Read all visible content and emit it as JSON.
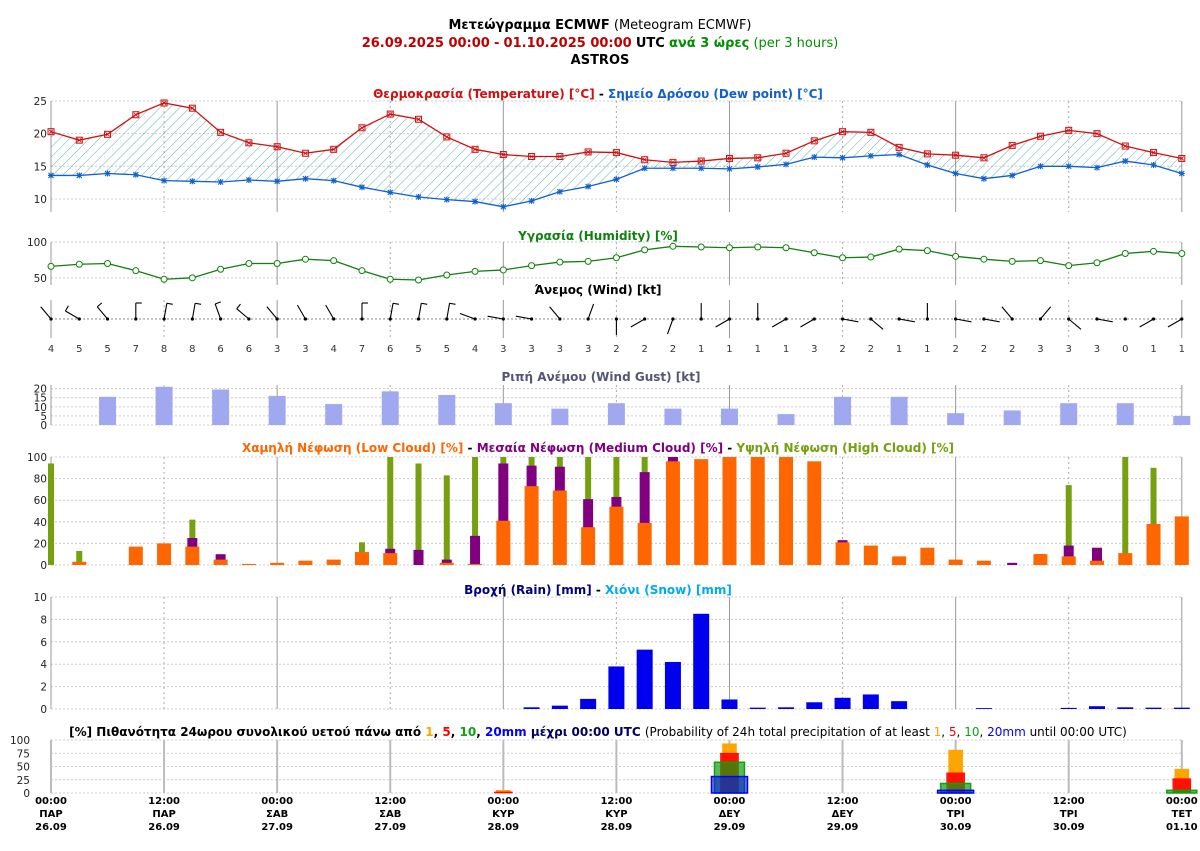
{
  "header": {
    "title_gr": "Μετεώγραμμα ECMWF",
    "title_en": "(Meteogram ECMWF)",
    "date_start": "26.09.2025 00:00",
    "dash": "-",
    "date_end": "01.10.2025 00:00",
    "utc": "UTC",
    "step_gr": "ανά 3 ώρες",
    "step_en": "(per 3 hours)",
    "location": "ASTROS"
  },
  "colors": {
    "temperature": "#d01010",
    "dewpoint": "#1060d0",
    "humidity": "#108010",
    "wind": "#000000",
    "gust": "#a0a8f0",
    "low_cloud": "#ff6600",
    "medium_cloud": "#800080",
    "high_cloud": "#77a010",
    "rain": "#0000ee",
    "snow": "#00aaee",
    "p1": "#ffa500",
    "p5": "#ff0000",
    "p10": "#10a010",
    "p20": "#0000ff"
  },
  "chart_data": [
    {
      "type": "line",
      "title_left": "Θερμοκρασία (Temperature) [°C]",
      "title_sep": "-",
      "title_right": "Σημείο Δρόσου (Dew point) [°C]",
      "ylim": [
        8,
        25
      ],
      "yticks": [
        10,
        15,
        20,
        25
      ],
      "series": [
        {
          "name": "Temperature",
          "values": [
            20.3,
            19.0,
            19.9,
            22.9,
            24.7,
            23.9,
            20.2,
            18.6,
            18.0,
            17.0,
            17.6,
            20.9,
            23.0,
            22.2,
            19.5,
            17.6,
            16.8,
            16.5,
            16.5,
            17.2,
            17.1,
            16.0,
            15.6,
            15.8,
            16.2,
            16.3,
            17.0,
            18.9,
            20.3,
            20.2,
            17.9,
            16.9,
            16.7,
            16.3,
            18.2,
            19.6,
            20.5,
            20.0,
            18.1,
            17.1,
            16.2
          ]
        },
        {
          "name": "Dew point",
          "values": [
            13.6,
            13.6,
            13.9,
            13.7,
            12.8,
            12.7,
            12.6,
            12.9,
            12.7,
            13.1,
            12.8,
            11.8,
            11.0,
            10.3,
            9.9,
            9.6,
            8.8,
            9.7,
            11.1,
            11.9,
            13.0,
            14.7,
            14.7,
            14.7,
            14.6,
            14.9,
            15.3,
            16.4,
            16.3,
            16.6,
            16.8,
            15.2,
            13.9,
            13.1,
            13.6,
            15.0,
            15.0,
            14.8,
            15.8,
            15.2,
            13.9
          ]
        }
      ]
    },
    {
      "type": "line",
      "title": "Υγρασία (Humidity) [%]",
      "ylim": [
        40,
        100
      ],
      "yticks": [
        50,
        100
      ],
      "series": [
        {
          "name": "Humidity",
          "values": [
            66,
            69,
            70,
            60,
            48,
            50,
            62,
            70,
            70,
            76,
            74,
            60,
            48,
            47,
            54,
            59,
            61,
            67,
            72,
            73,
            78,
            89,
            94,
            93,
            92,
            93,
            92,
            85,
            78,
            79,
            90,
            88,
            80,
            76,
            73,
            74,
            67,
            71,
            84,
            87,
            84
          ]
        }
      ]
    },
    {
      "type": "scatter",
      "title": "Άνεμος (Wind) [kt]",
      "speeds": [
        4,
        5,
        5,
        7,
        8,
        8,
        6,
        6,
        3,
        3,
        4,
        7,
        6,
        5,
        5,
        4,
        3,
        3,
        3,
        3,
        2,
        2,
        2,
        1,
        1,
        1,
        1,
        3,
        2,
        2,
        1,
        1,
        2,
        2,
        2,
        3,
        3,
        3,
        0,
        1,
        1
      ],
      "directions_deg": [
        320,
        300,
        320,
        0,
        10,
        10,
        340,
        310,
        320,
        330,
        330,
        0,
        10,
        10,
        10,
        290,
        280,
        280,
        320,
        20,
        180,
        240,
        200,
        0,
        240,
        0,
        240,
        240,
        100,
        130,
        100,
        0,
        100,
        100,
        320,
        40,
        130,
        100,
        0,
        240,
        240
      ]
    },
    {
      "type": "bar",
      "title": "Ριπή Ανέμου (Wind Gust) [kt]",
      "ylim": [
        0,
        22
      ],
      "yticks": [
        0,
        5,
        10,
        15,
        20
      ],
      "values": [
        null,
        null,
        15.5,
        null,
        21,
        null,
        19.5,
        null,
        16,
        null,
        11.5,
        null,
        18.5,
        null,
        16.5,
        null,
        12,
        null,
        9,
        null,
        12,
        null,
        9,
        null,
        9,
        null,
        6,
        null,
        15.5,
        null,
        15.5,
        null,
        6.5,
        null,
        8,
        null,
        12,
        null,
        12,
        null,
        5
      ]
    },
    {
      "type": "bar",
      "title_low": "Χαμηλή Νέφωση (Low Cloud) [%]",
      "title_medium": "Μεσαία Νέφωση (Medium Cloud) [%]",
      "title_high": "Υψηλή Νέφωση (High Cloud) [%]",
      "title_sep": "-",
      "ylim": [
        0,
        100
      ],
      "yticks": [
        0,
        20,
        40,
        60,
        80,
        100
      ],
      "series": [
        {
          "name": "High Cloud",
          "values": [
            94,
            13,
            0,
            0,
            0,
            42,
            0,
            0,
            0,
            0,
            0,
            21,
            100,
            94,
            83,
            100,
            100,
            100,
            100,
            100,
            100,
            100,
            100,
            0,
            0,
            0,
            0,
            0,
            0,
            0,
            0,
            0,
            0,
            0,
            0,
            0,
            74,
            0,
            100,
            90,
            0
          ]
        },
        {
          "name": "Medium Cloud",
          "values": [
            0,
            0,
            0,
            0,
            0,
            25,
            10,
            0,
            0,
            0,
            0,
            0,
            15,
            14,
            5,
            27,
            94,
            92,
            91,
            61,
            63,
            86,
            100,
            0,
            0,
            0,
            0,
            0,
            23,
            0,
            0,
            0,
            0,
            0,
            2,
            10,
            18,
            16,
            0,
            0,
            0
          ]
        },
        {
          "name": "Low Cloud",
          "values": [
            0,
            3,
            0,
            17,
            20,
            17,
            5,
            1,
            2,
            4,
            5,
            12,
            11,
            0,
            2,
            1,
            41,
            73,
            69,
            35,
            54,
            39,
            96,
            98,
            100,
            100,
            100,
            96,
            21,
            18,
            8,
            16,
            5,
            4,
            0,
            10,
            8,
            4,
            11,
            38,
            45
          ]
        }
      ]
    },
    {
      "type": "bar",
      "title_rain": "Βροχή (Rain) [mm]",
      "title_snow": "Χιόνι (Snow) [mm]",
      "title_sep": "-",
      "ylim": [
        0,
        10
      ],
      "yticks": [
        0,
        2,
        4,
        6,
        8,
        10
      ],
      "series": [
        {
          "name": "Rain",
          "values": [
            0,
            0,
            0,
            0,
            0,
            0,
            0,
            0,
            0,
            0,
            0,
            0,
            0,
            0,
            0,
            0,
            0,
            0.15,
            0.3,
            0.9,
            3.8,
            5.3,
            4.2,
            8.5,
            0.85,
            0.12,
            0.15,
            0.6,
            1.0,
            1.3,
            0.7,
            0,
            0,
            0.08,
            0,
            0,
            0.1,
            0.25,
            0.15,
            0.12,
            0.12
          ]
        },
        {
          "name": "Snow",
          "values": [
            0,
            0,
            0,
            0,
            0,
            0,
            0,
            0,
            0,
            0,
            0,
            0,
            0,
            0,
            0,
            0,
            0,
            0,
            0,
            0,
            0,
            0,
            0,
            0,
            0,
            0,
            0,
            0,
            0,
            0,
            0,
            0,
            0,
            0,
            0,
            0,
            0,
            0,
            0,
            0,
            0
          ]
        }
      ]
    },
    {
      "type": "bar",
      "title_gr_prefix": "[%] Πιθανότητα 24ωρου συνολικού υετού πάνω από",
      "t1": "1",
      "t5": "5",
      "t10": "10",
      "t20": "20mm",
      "title_gr_suffix": "μέχρι 00:00 UTC",
      "title_en_prefix": "(Probability of 24h total precipitation of at least",
      "title_en_suffix": "until 00:00 UTC)",
      "comma": ",",
      "ylim": [
        0,
        100
      ],
      "yticks": [
        0,
        25,
        50,
        75,
        100
      ],
      "x_index": [
        16,
        24,
        32,
        40
      ],
      "series": [
        {
          "name": "1mm",
          "values": [
            5,
            93,
            81,
            45
          ]
        },
        {
          "name": "5mm",
          "values": [
            2,
            75,
            38,
            27
          ]
        },
        {
          "name": "10mm",
          "values": [
            0,
            58,
            18,
            5
          ]
        },
        {
          "name": "20mm",
          "values": [
            0,
            31,
            5,
            0
          ]
        }
      ]
    }
  ],
  "x_axis": {
    "labels": [
      {
        "time": "00:00",
        "day": "ΠΑΡ",
        "date": "26.09"
      },
      {
        "time": "12:00",
        "day": "ΠΑΡ",
        "date": "26.09"
      },
      {
        "time": "00:00",
        "day": "ΣΑΒ",
        "date": "27.09"
      },
      {
        "time": "12:00",
        "day": "ΣΑΒ",
        "date": "27.09"
      },
      {
        "time": "00:00",
        "day": "ΚΥΡ",
        "date": "28.09"
      },
      {
        "time": "12:00",
        "day": "ΚΥΡ",
        "date": "28.09"
      },
      {
        "time": "00:00",
        "day": "ΔΕΥ",
        "date": "29.09"
      },
      {
        "time": "12:00",
        "day": "ΔΕΥ",
        "date": "29.09"
      },
      {
        "time": "00:00",
        "day": "ΤΡΙ",
        "date": "30.09"
      },
      {
        "time": "12:00",
        "day": "ΤΡΙ",
        "date": "30.09"
      },
      {
        "time": "00:00",
        "day": "ΤΕΤ",
        "date": "01.10"
      }
    ]
  }
}
